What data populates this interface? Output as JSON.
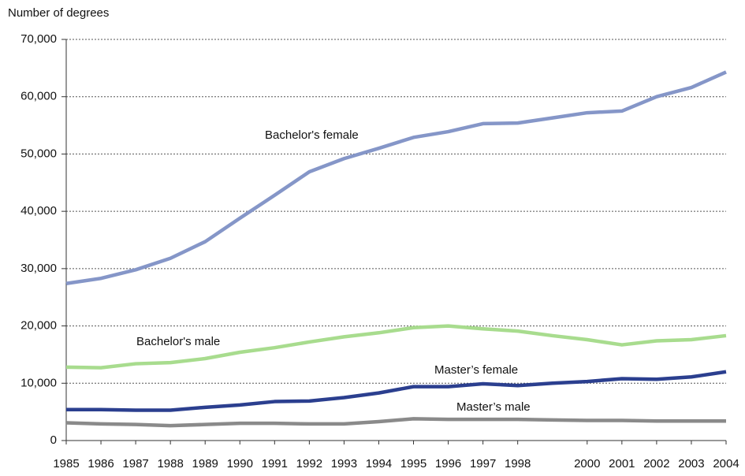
{
  "chart_data": {
    "type": "line",
    "y_label": "Number of degrees",
    "x": [
      1985,
      1986,
      1987,
      1988,
      1989,
      1990,
      1991,
      1992,
      1993,
      1994,
      1995,
      1996,
      1997,
      1998,
      1999,
      2000,
      2001,
      2002,
      2003,
      2004
    ],
    "xlim": [
      1985,
      2004
    ],
    "xticks": [
      1985,
      1986,
      1987,
      1988,
      1989,
      1990,
      1991,
      1992,
      1993,
      1994,
      1995,
      1996,
      1997,
      1998,
      2000,
      2001,
      2002,
      2003,
      2004
    ],
    "ylim": [
      0,
      70000
    ],
    "yticks": [
      0,
      {
        "value": 10000,
        "label": "10,000"
      },
      {
        "value": 20000,
        "label": "20,000"
      },
      {
        "value": 30000,
        "label": "30,000"
      },
      {
        "value": 40000,
        "label": "40,000"
      },
      {
        "value": 50000,
        "label": "50,000"
      },
      {
        "value": 60000,
        "label": "60,000"
      },
      {
        "value": 70000,
        "label": "70,000"
      }
    ],
    "grid": true,
    "series": [
      {
        "name": "Bachelor's female",
        "color": "#8596c8",
        "values": [
          27400,
          28300,
          29800,
          31800,
          34700,
          38800,
          42800,
          46900,
          49200,
          51000,
          52900,
          53900,
          55300,
          55400,
          56300,
          57200,
          57500,
          60000,
          61600,
          64300
        ]
      },
      {
        "name": "Bachelor's male",
        "color": "#a8dc8e",
        "values": [
          12800,
          12700,
          13400,
          13600,
          14300,
          15400,
          16200,
          17200,
          18100,
          18800,
          19700,
          20000,
          19500,
          19100,
          18300,
          17600,
          16700,
          17400,
          17600,
          18300
        ]
      },
      {
        "name": "Master’s female",
        "color": "#2b3f8f",
        "values": [
          5400,
          5400,
          5300,
          5300,
          5800,
          6200,
          6800,
          6900,
          7500,
          8300,
          9400,
          9400,
          9900,
          9600,
          10000,
          10300,
          10800,
          10700,
          11100,
          12000
        ]
      },
      {
        "name": "Master’s male",
        "color": "#8a8a8a",
        "values": [
          3100,
          2900,
          2800,
          2600,
          2800,
          3000,
          3000,
          2900,
          2900,
          3300,
          3800,
          3700,
          3700,
          3700,
          3600,
          3500,
          3500,
          3400,
          3400,
          3400
        ]
      }
    ]
  }
}
